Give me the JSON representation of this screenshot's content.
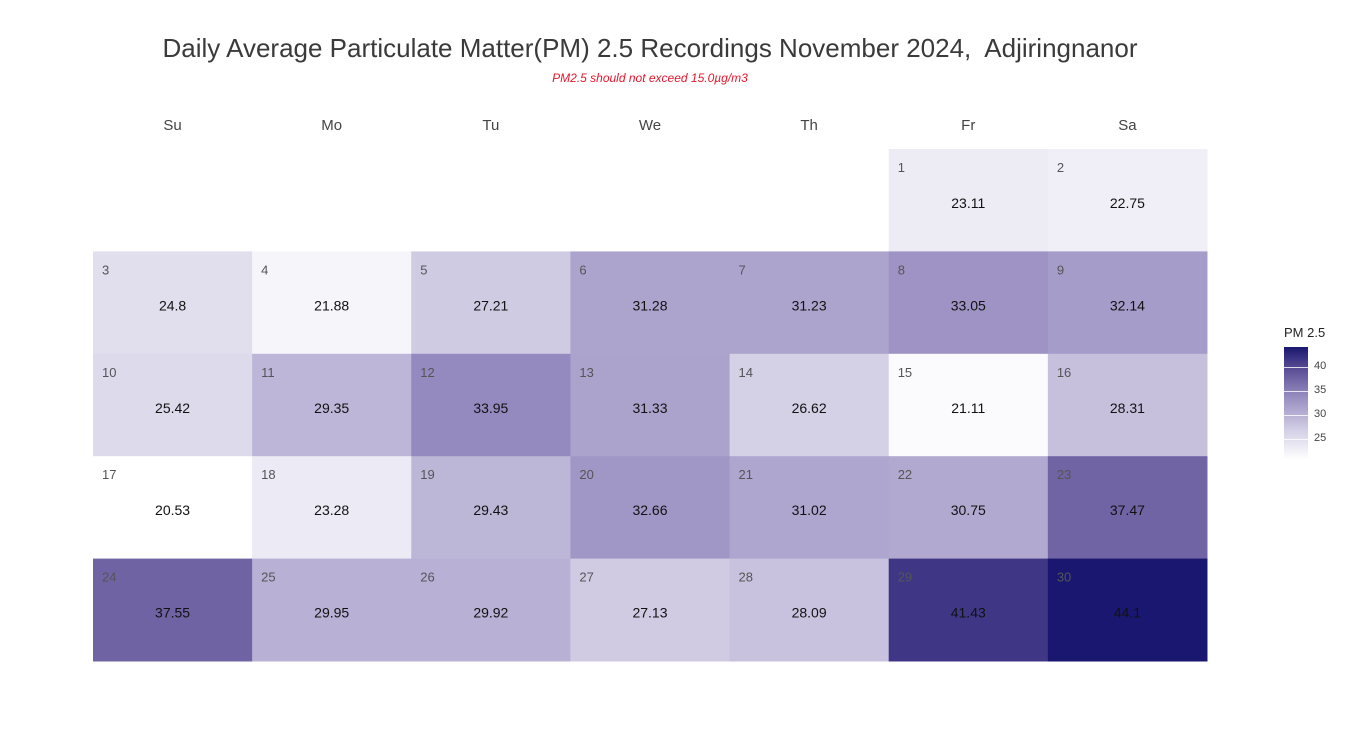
{
  "title": "Daily Average Particulate Matter(PM) 2.5 Recordings November 2024,  Adjiringnanor",
  "subtitle": "PM2.5 should not exceed 15.0µg/m3",
  "legend": {
    "title": "PM 2.5",
    "ticks": [
      25,
      30,
      35,
      40
    ],
    "min": 20.53,
    "max": 44.1,
    "colors": {
      "low": "#ffffff",
      "high": "#1a1770"
    }
  },
  "chart_data": {
    "type": "heatmap",
    "title": "Daily Average Particulate Matter(PM) 2.5 Recordings November 2024,  Adjiringnanor",
    "subtitle": "PM2.5 should not exceed 15.0µg/m3",
    "weekdays": [
      "Su",
      "Mo",
      "Tu",
      "We",
      "Th",
      "Fr",
      "Sa"
    ],
    "first_weekday_index": 5,
    "days": [
      {
        "day": 1,
        "value": 23.11
      },
      {
        "day": 2,
        "value": 22.75
      },
      {
        "day": 3,
        "value": 24.8
      },
      {
        "day": 4,
        "value": 21.88
      },
      {
        "day": 5,
        "value": 27.21
      },
      {
        "day": 6,
        "value": 31.28
      },
      {
        "day": 7,
        "value": 31.23
      },
      {
        "day": 8,
        "value": 33.05
      },
      {
        "day": 9,
        "value": 32.14
      },
      {
        "day": 10,
        "value": 25.42
      },
      {
        "day": 11,
        "value": 29.35
      },
      {
        "day": 12,
        "value": 33.95
      },
      {
        "day": 13,
        "value": 31.33
      },
      {
        "day": 14,
        "value": 26.62
      },
      {
        "day": 15,
        "value": 21.11
      },
      {
        "day": 16,
        "value": 28.31
      },
      {
        "day": 17,
        "value": 20.53
      },
      {
        "day": 18,
        "value": 23.28
      },
      {
        "day": 19,
        "value": 29.43
      },
      {
        "day": 20,
        "value": 32.66
      },
      {
        "day": 21,
        "value": 31.02
      },
      {
        "day": 22,
        "value": 30.75
      },
      {
        "day": 23,
        "value": 37.47
      },
      {
        "day": 24,
        "value": 37.55
      },
      {
        "day": 25,
        "value": 29.95
      },
      {
        "day": 26,
        "value": 29.92
      },
      {
        "day": 27,
        "value": 27.13
      },
      {
        "day": 28,
        "value": 28.09
      },
      {
        "day": 29,
        "value": 41.43
      },
      {
        "day": 30,
        "value": 44.1
      }
    ]
  }
}
